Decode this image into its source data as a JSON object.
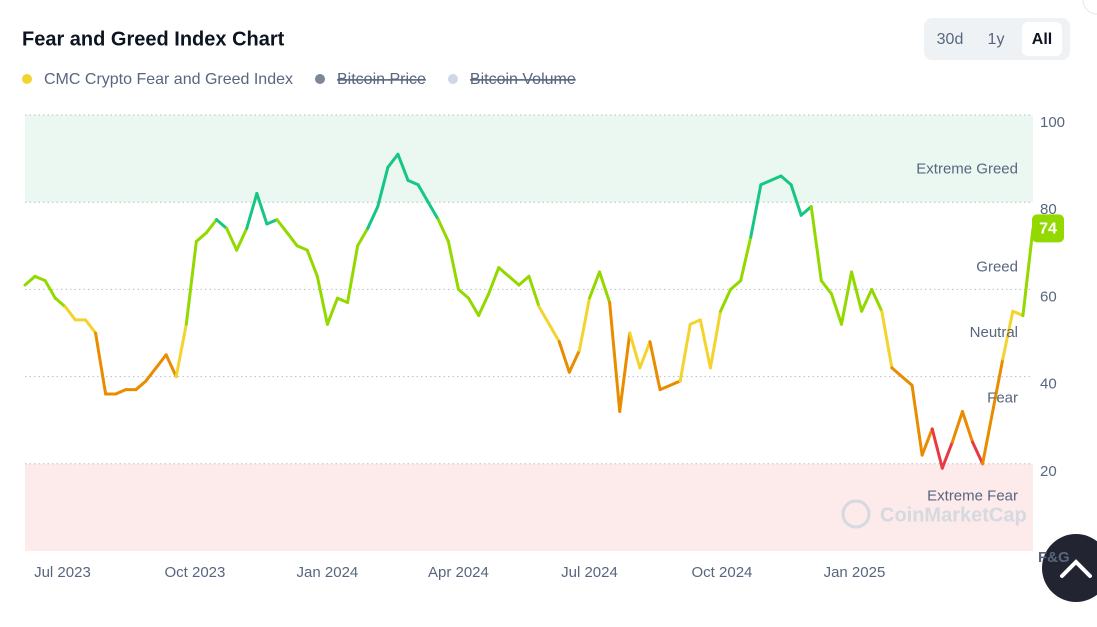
{
  "chart_data": {
    "type": "line",
    "title": "Fear and Greed Index Chart",
    "range_buttons": [
      "30d",
      "1y",
      "All"
    ],
    "active_range": "All",
    "series": [
      {
        "name": "CMC Crypto Fear and Greed Index",
        "color": "#f3d42f",
        "values": [
          61,
          63,
          62,
          58,
          56,
          53,
          53,
          50,
          36,
          36,
          37,
          37,
          39,
          42,
          45,
          40,
          52,
          71,
          73,
          76,
          74,
          69,
          74,
          82,
          75,
          76,
          73,
          70,
          69,
          63,
          52,
          58,
          57,
          70,
          74,
          79,
          88,
          91,
          85,
          84,
          80,
          76,
          71,
          60,
          58,
          54,
          59,
          65,
          63,
          61,
          63,
          56,
          52,
          48,
          41,
          46,
          58,
          64,
          57,
          32,
          50,
          42,
          48,
          37,
          38,
          39,
          52,
          53,
          42,
          55,
          60,
          62,
          72,
          84,
          85,
          86,
          84,
          77,
          79,
          62,
          59,
          52,
          64,
          55,
          60,
          55,
          42,
          40,
          38,
          22,
          28,
          19,
          25,
          32,
          25,
          20,
          32,
          44,
          55,
          54,
          74
        ]
      }
    ],
    "x": [
      "2023-06-05",
      "2023-06-12",
      "2023-06-19",
      "2023-06-26",
      "2023-07-03",
      "2023-07-10",
      "2023-07-17",
      "2023-07-24",
      "2023-07-31",
      "2023-08-07",
      "2023-08-14",
      "2023-08-21",
      "2023-08-28",
      "2023-09-04",
      "2023-09-11",
      "2023-09-18",
      "2023-09-25",
      "2023-10-02",
      "2023-10-09",
      "2023-10-16",
      "2023-10-23",
      "2023-10-30",
      "2023-11-06",
      "2023-11-13",
      "2023-11-20",
      "2023-11-27",
      "2023-12-04",
      "2023-12-11",
      "2023-12-18",
      "2023-12-25",
      "2024-01-01",
      "2024-01-08",
      "2024-01-15",
      "2024-01-22",
      "2024-01-29",
      "2024-02-05",
      "2024-02-12",
      "2024-02-19",
      "2024-02-26",
      "2024-03-04",
      "2024-03-11",
      "2024-03-18",
      "2024-03-25",
      "2024-04-01",
      "2024-04-08",
      "2024-04-15",
      "2024-04-22",
      "2024-04-29",
      "2024-05-06",
      "2024-05-13",
      "2024-05-20",
      "2024-05-27",
      "2024-06-03",
      "2024-06-10",
      "2024-06-17",
      "2024-06-24",
      "2024-07-01",
      "2024-07-08",
      "2024-07-15",
      "2024-07-22",
      "2024-07-29",
      "2024-08-05",
      "2024-08-12",
      "2024-08-19",
      "2024-08-26",
      "2024-09-02",
      "2024-09-09",
      "2024-09-16",
      "2024-09-23",
      "2024-09-30",
      "2024-10-07",
      "2024-10-14",
      "2024-10-21",
      "2024-10-28",
      "2024-11-04",
      "2024-11-11",
      "2024-11-18",
      "2024-11-25",
      "2024-12-02",
      "2024-12-09",
      "2024-12-16",
      "2024-12-23",
      "2024-12-30",
      "2025-01-06",
      "2025-01-13",
      "2025-01-20",
      "2025-01-27",
      "2025-02-03",
      "2025-02-10",
      "2025-02-17",
      "2025-02-24",
      "2025-03-03",
      "2025-03-10",
      "2025-03-17",
      "2025-03-24",
      "2025-03-31",
      "2025-04-07",
      "2025-04-14",
      "2025-04-21",
      "2025-04-28",
      "2025-05-05"
    ],
    "legend_hidden": [
      {
        "name": "Bitcoin Price",
        "color": "#7d8694"
      },
      {
        "name": "Bitcoin Volume",
        "color": "#cfd6e4"
      }
    ],
    "zones": [
      {
        "label": "Extreme Fear",
        "from": 0,
        "to": 25,
        "color": "#ea3943"
      },
      {
        "label": "Fear",
        "from": 25,
        "to": 45,
        "color": "#ea8c00"
      },
      {
        "label": "Neutral",
        "from": 45,
        "to": 55,
        "color": "#f3d42f"
      },
      {
        "label": "Greed",
        "from": 55,
        "to": 75,
        "color": "#93d900"
      },
      {
        "label": "Extreme Greed",
        "from": 75,
        "to": 100,
        "color": "#16c784"
      }
    ],
    "bands": [
      {
        "from": 80,
        "to": 100,
        "color": "#eaf8f1"
      },
      {
        "from": 0,
        "to": 20,
        "color": "#fdeaea"
      }
    ],
    "y_label": "F&G",
    "watermark": "CoinMarketCap",
    "xlim": [
      "2023-06-05",
      "2025-05-05"
    ],
    "xticks": [
      {
        "value": "2023-07",
        "label": "Jul 2023"
      },
      {
        "value": "2023-10",
        "label": "Oct 2023"
      },
      {
        "value": "2024-01",
        "label": "Jan 2024"
      },
      {
        "value": "2024-04",
        "label": "Apr 2024"
      },
      {
        "value": "2024-07",
        "label": "Jul 2024"
      },
      {
        "value": "2024-10",
        "label": "Oct 2024"
      },
      {
        "value": "2025-01",
        "label": "Jan 2025"
      }
    ],
    "ylim": [
      0,
      100
    ],
    "yticks": [
      20,
      40,
      60,
      80,
      100
    ],
    "grid": true
  }
}
